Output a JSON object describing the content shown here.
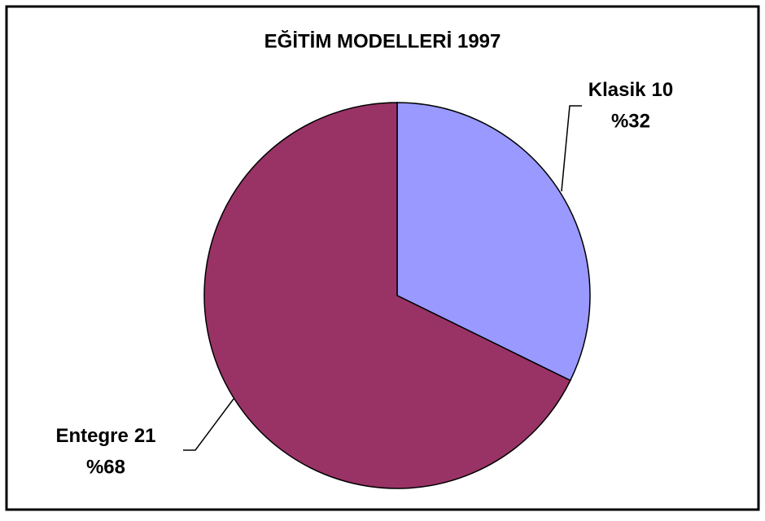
{
  "chart_data": {
    "type": "pie",
    "title": "EĞİTİM MODELLERİ 1997",
    "categories": [
      "Klasik",
      "Entegre"
    ],
    "values": [
      10,
      21
    ],
    "percents": [
      32,
      68
    ],
    "percent_labels": [
      "%32",
      "%68"
    ],
    "colors": [
      "#9999ff",
      "#993366"
    ]
  }
}
